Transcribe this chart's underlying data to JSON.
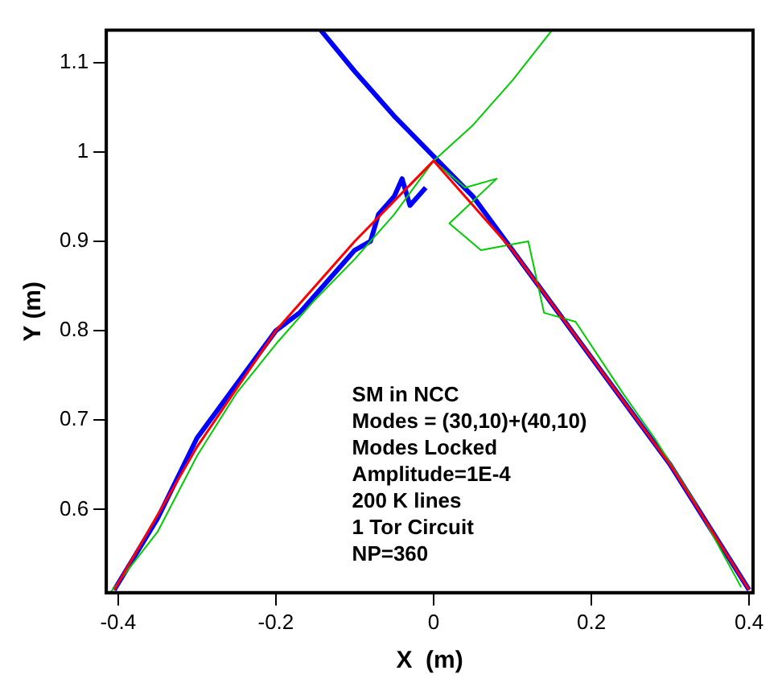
{
  "chart_data": {
    "type": "line",
    "xlabel": "X  (m)",
    "ylabel": "Y (m)",
    "annotations": [
      "SM in NCC\nModes = (30,10)+(40,10)\nModes Locked\nAmplitude=1E-4\n200 K lines\n1 Tor Circuit\nNP=360"
    ],
    "xlim": [
      -0.415,
      0.405
    ],
    "ylim": [
      0.507,
      1.136
    ],
    "xticks": [
      -0.4,
      -0.2,
      0,
      0.2,
      0.4
    ],
    "yticks": [
      0.6,
      0.7,
      0.8,
      0.9,
      1,
      1.1
    ],
    "grid": false,
    "legend": false,
    "marker": "none",
    "line_style": "solid",
    "series": [
      {
        "color": "#ff0000",
        "x": [
          -0.405,
          -0.3,
          -0.2,
          -0.1,
          0,
          0.1,
          0.2,
          0.3,
          0.4
        ],
        "values": [
          0.51,
          0.67,
          0.8,
          0.9,
          0.99,
          0.89,
          0.77,
          0.65,
          0.51
        ]
      },
      {
        "color": "#00cc00",
        "x": [
          -0.41,
          -0.35,
          -0.3,
          -0.25,
          -0.2,
          -0.15,
          -0.1,
          -0.05,
          0,
          0.05,
          0.1,
          0.15
        ],
        "values": [
          0.507,
          0.575,
          0.66,
          0.73,
          0.785,
          0.835,
          0.88,
          0.93,
          0.99,
          1.03,
          1.08,
          1.136
        ]
      },
      {
        "color": "#00cc00",
        "x": [
          0,
          0.04,
          0.08,
          0.02,
          0.06,
          0.12,
          0.14,
          0.18,
          0.24,
          0.28,
          0.33,
          0.39
        ],
        "values": [
          0.99,
          0.96,
          0.97,
          0.92,
          0.89,
          0.9,
          0.82,
          0.81,
          0.73,
          0.68,
          0.61,
          0.513
        ]
      },
      {
        "color": "#0000ff",
        "x": [
          -0.143,
          -0.1,
          -0.05,
          0,
          0.05,
          0.1,
          0.15,
          0.2,
          0.25,
          0.3,
          0.35,
          0.4
        ],
        "values": [
          1.136,
          1.09,
          1.04,
          0.995,
          0.95,
          0.89,
          0.83,
          0.77,
          0.71,
          0.65,
          0.58,
          0.51
        ]
      },
      {
        "color": "#0000ff",
        "x": [
          -0.405,
          -0.35,
          -0.3,
          -0.25,
          -0.2,
          -0.17,
          -0.13,
          -0.1,
          -0.08,
          -0.07,
          -0.06,
          -0.05,
          -0.04,
          -0.03,
          -0.01
        ],
        "values": [
          0.51,
          0.59,
          0.68,
          0.74,
          0.8,
          0.82,
          0.86,
          0.89,
          0.9,
          0.93,
          0.94,
          0.95,
          0.97,
          0.94,
          0.96
        ]
      }
    ]
  }
}
